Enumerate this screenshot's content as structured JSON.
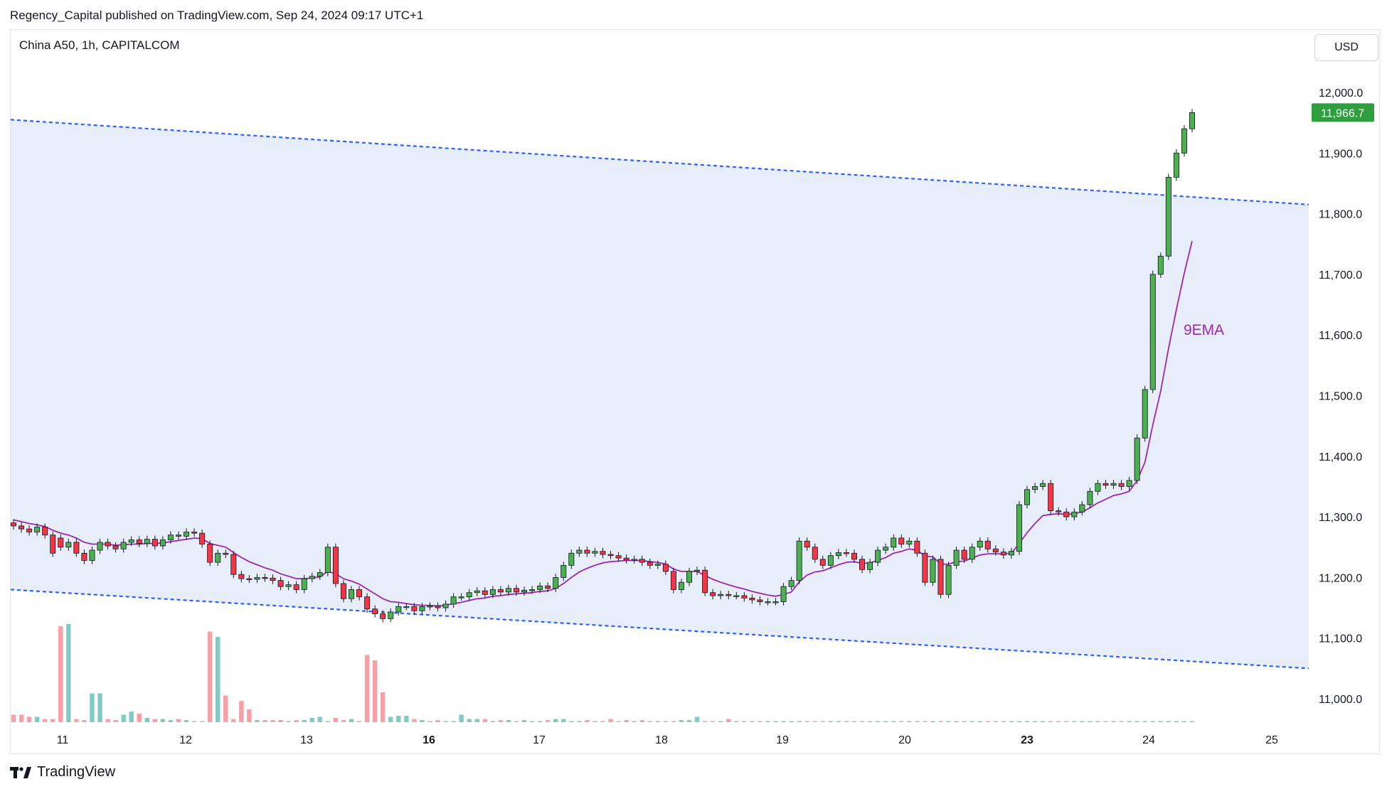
{
  "header": {
    "published_line": "Regency_Capital published on TradingView.com, Sep 24, 2024 09:17 UTC+1",
    "symbol_line": "China A50, 1h, CAPITALCOM",
    "currency_button": "USD"
  },
  "footer": {
    "brand": "TradingView"
  },
  "colors": {
    "up": "#4caf50",
    "down": "#f23645",
    "up_volume": "#80cbc4",
    "down_volume": "#f7a0a6",
    "channel_fill": "#e6ebfa",
    "channel_line": "#2962ff",
    "ema": "#9c27b0",
    "price_tag": "#2e9e3f"
  },
  "chart_data": {
    "type": "candlestick",
    "title": "China A50, 1h, CAPITALCOM",
    "y_axis": {
      "ticks": [
        "12,000.0",
        "11,900.0",
        "11,800.0",
        "11,700.0",
        "11,600.0",
        "11,500.0",
        "11,400.0",
        "11,300.0",
        "11,200.0",
        "11,100.0",
        "11,000.0"
      ],
      "range": [
        10960,
        12090
      ],
      "unit": "USD"
    },
    "x_axis": {
      "labels": [
        "11",
        "12",
        "13",
        "16",
        "17",
        "18",
        "19",
        "20",
        "23",
        "24",
        "25"
      ],
      "bold_labels": [
        "16",
        "23"
      ]
    },
    "last_price": "11,966.7",
    "ema_label": "9EMA",
    "channel": {
      "upper": {
        "start": 11955,
        "end": 11815
      },
      "lower": {
        "start": 11180,
        "end": 11050
      }
    },
    "candles_open": [
      11290,
      11285,
      11280,
      11275,
      11283,
      11270,
      11265,
      11250,
      11258,
      11240,
      11228,
      11245,
      11258,
      11252,
      11247,
      11258,
      11262,
      11256,
      11263,
      11252,
      11262,
      11270,
      11268,
      11275,
      11273,
      11255,
      11225,
      11240,
      11238,
      11205,
      11198,
      11197,
      11200,
      11199,
      11195,
      11185,
      11188,
      11180,
      11198,
      11202,
      11208,
      11250,
      11190,
      11165,
      11180,
      11168,
      11148,
      11140,
      11132,
      11143,
      11152,
      11152,
      11145,
      11152,
      11153,
      11150,
      11156,
      11168,
      11168,
      11175,
      11178,
      11172,
      11180,
      11176,
      11182,
      11176,
      11179,
      11180,
      11186,
      11182,
      11200,
      11220,
      11240,
      11245,
      11240,
      11243,
      11238,
      11236,
      11232,
      11229,
      11230,
      11225,
      11220,
      11222,
      11210,
      11180,
      11192,
      11210,
      11212,
      11175,
      11170,
      11172,
      11170,
      11170,
      11166,
      11163,
      11160,
      11160,
      11160,
      11185,
      11195,
      11260,
      11250,
      11230,
      11220,
      11236,
      11241,
      11240,
      11230,
      11213,
      11225,
      11245,
      11250,
      11265,
      11255,
      11260,
      11240,
      11192,
      11230,
      11172,
      11220,
      11245,
      11230,
      11250,
      11260,
      11247,
      11242,
      11237,
      11243,
      11320,
      11345,
      11350,
      11355,
      11310,
      11308,
      11300,
      11308,
      11320,
      11342,
      11355,
      11352,
      11355,
      11350,
      11360,
      11430,
      11510,
      11700,
      11730,
      11860,
      11900,
      11940
    ],
    "candles_close": [
      11285,
      11280,
      11275,
      11283,
      11270,
      11240,
      11250,
      11258,
      11240,
      11228,
      11245,
      11258,
      11252,
      11247,
      11258,
      11262,
      11256,
      11263,
      11252,
      11262,
      11270,
      11268,
      11275,
      11273,
      11255,
      11225,
      11240,
      11238,
      11205,
      11198,
      11197,
      11200,
      11199,
      11195,
      11185,
      11188,
      11180,
      11198,
      11202,
      11208,
      11250,
      11190,
      11165,
      11180,
      11168,
      11148,
      11140,
      11132,
      11143,
      11152,
      11152,
      11145,
      11152,
      11153,
      11150,
      11156,
      11168,
      11168,
      11175,
      11178,
      11172,
      11180,
      11176,
      11182,
      11176,
      11179,
      11180,
      11186,
      11182,
      11200,
      11220,
      11240,
      11245,
      11240,
      11243,
      11238,
      11236,
      11232,
      11229,
      11230,
      11225,
      11220,
      11222,
      11210,
      11180,
      11192,
      11210,
      11212,
      11175,
      11170,
      11172,
      11170,
      11170,
      11166,
      11163,
      11160,
      11160,
      11160,
      11185,
      11195,
      11260,
      11250,
      11230,
      11220,
      11236,
      11241,
      11240,
      11230,
      11213,
      11225,
      11245,
      11250,
      11265,
      11255,
      11260,
      11240,
      11192,
      11230,
      11172,
      11220,
      11245,
      11230,
      11250,
      11260,
      11247,
      11242,
      11237,
      11243,
      11320,
      11345,
      11350,
      11355,
      11310,
      11308,
      11300,
      11308,
      11320,
      11342,
      11355,
      11352,
      11355,
      11350,
      11360,
      11430,
      11510,
      11700,
      11730,
      11860,
      11900,
      11940,
      11966.7
    ],
    "ema": [
      11295,
      11292,
      11289,
      11287,
      11284,
      11278,
      11273,
      11270,
      11265,
      11258,
      11255,
      11255,
      11255,
      11253,
      11254,
      11255,
      11255,
      11256,
      11256,
      11257,
      11259,
      11261,
      11263,
      11265,
      11264,
      11256,
      11253,
      11250,
      11241,
      11233,
      11226,
      11221,
      11216,
      11212,
      11206,
      11202,
      11198,
      11198,
      11199,
      11201,
      11210,
      11206,
      11198,
      11194,
      11189,
      11181,
      11173,
      11165,
      11160,
      11159,
      11157,
      11155,
      11154,
      11154,
      11153,
      11154,
      11157,
      11159,
      11162,
      11165,
      11166,
      11169,
      11170,
      11172,
      11173,
      11174,
      11175,
      11177,
      11178,
      11182,
      11190,
      11200,
      11209,
      11215,
      11220,
      11224,
      11226,
      11227,
      11228,
      11228,
      11228,
      11226,
      11225,
      11222,
      11214,
      11210,
      11210,
      11210,
      11203,
      11197,
      11192,
      11188,
      11184,
      11181,
      11177,
      11174,
      11171,
      11169,
      11172,
      11176,
      11193,
      11204,
      11209,
      11211,
      11216,
      11221,
      11225,
      11226,
      11223,
      11224,
      11228,
      11233,
      11240,
      11243,
      11247,
      11245,
      11235,
      11234,
      11222,
      11222,
      11226,
      11227,
      11232,
      11237,
      11239,
      11239,
      11239,
      11240,
      11256,
      11274,
      11289,
      11302,
      11304,
      11305,
      11304,
      11305,
      11308,
      11315,
      11323,
      11329,
      11335,
      11338,
      11342,
      11360,
      11390,
      11452,
      11507,
      11578,
      11642,
      11702,
      11755
    ],
    "volume_bars": [
      7,
      7,
      5,
      5,
      3,
      3,
      90,
      92,
      3,
      2,
      27,
      27,
      3,
      2,
      7,
      10,
      8,
      4,
      3,
      3,
      2,
      3,
      2,
      1,
      1,
      85,
      80,
      25,
      3,
      20,
      12,
      2,
      2,
      2,
      2,
      1,
      2,
      2,
      4,
      5,
      1,
      4,
      2,
      3,
      1,
      63,
      58,
      28,
      5,
      6,
      6,
      3,
      2,
      1,
      2,
      1,
      1,
      7,
      3,
      3,
      3,
      1,
      2,
      2,
      1,
      2,
      1,
      1,
      2,
      3,
      3,
      1,
      1,
      2,
      1,
      1,
      3,
      1,
      2,
      1,
      2,
      1,
      1,
      1,
      1,
      2,
      2,
      5,
      1,
      1,
      1,
      3,
      1,
      1,
      1,
      1,
      1,
      1,
      1,
      1,
      1,
      1,
      1,
      1,
      1,
      1,
      1,
      1,
      1,
      1,
      1,
      1,
      1,
      1,
      1,
      1,
      1,
      1,
      1,
      1,
      1,
      1,
      1,
      1,
      1,
      1,
      1,
      1,
      1,
      1,
      1,
      1,
      1,
      1,
      1,
      1,
      1,
      1,
      1,
      1,
      1,
      1,
      1,
      1,
      1,
      1,
      1,
      1,
      1,
      1,
      1
    ]
  }
}
